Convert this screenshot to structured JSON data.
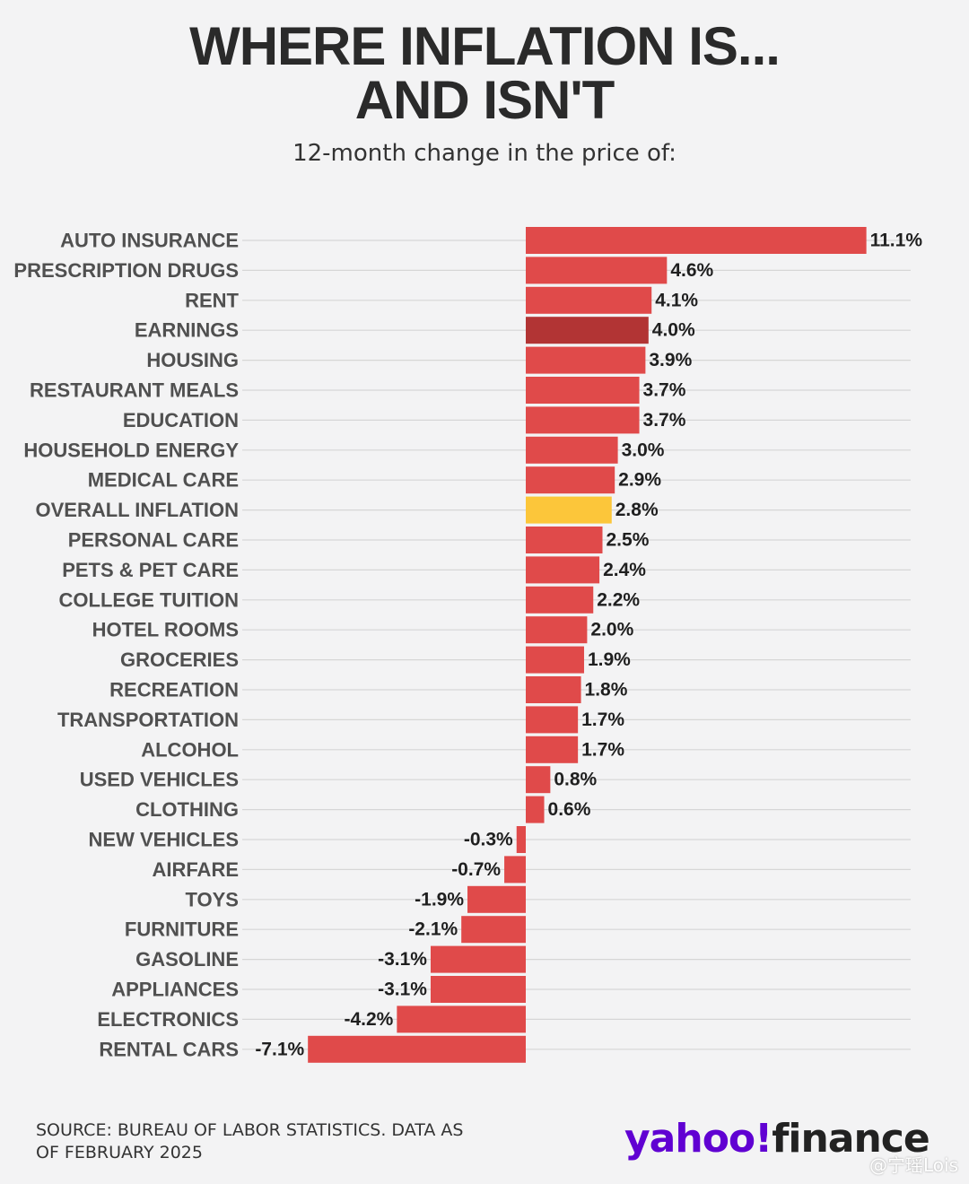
{
  "header": {
    "title_line1": "WHERE INFLATION IS...",
    "title_line2": "AND ISN'T",
    "subtitle": "12-month change in the price of:"
  },
  "footer": {
    "source_line1": "SOURCE: BUREAU OF LABOR STATISTICS. DATA AS",
    "source_line2": "OF FEBRUARY 2025",
    "logo_brand": "yahoo!",
    "logo_product": "finance",
    "watermark": "@宁瑶Lois"
  },
  "colors": {
    "bar_default": "#e04a4a",
    "bar_earnings": "#b23434",
    "bar_overall": "#fcc63a",
    "gridline": "#d6d6d6",
    "background": "#f3f3f4",
    "brand_purple": "#6001d2"
  },
  "chart_data": {
    "type": "bar",
    "orientation": "horizontal",
    "title": "WHERE INFLATION IS... AND ISN'T",
    "subtitle": "12-month change in the price of:",
    "unit": "%",
    "xlim": [
      -7.5,
      11.8
    ],
    "grid": true,
    "categories": [
      "AUTO INSURANCE",
      "PRESCRIPTION DRUGS",
      "RENT",
      "EARNINGS",
      "HOUSING",
      "RESTAURANT MEALS",
      "EDUCATION",
      "HOUSEHOLD ENERGY",
      "MEDICAL CARE",
      "OVERALL INFLATION",
      "PERSONAL CARE",
      "PETS & PET CARE",
      "COLLEGE TUITION",
      "HOTEL ROOMS",
      "GROCERIES",
      "RECREATION",
      "TRANSPORTATION",
      "ALCOHOL",
      "USED VEHICLES",
      "CLOTHING",
      "NEW VEHICLES",
      "AIRFARE",
      "TOYS",
      "FURNITURE",
      "GASOLINE",
      "APPLIANCES",
      "ELECTRONICS",
      "RENTAL CARS"
    ],
    "values": [
      11.1,
      4.6,
      4.1,
      4.0,
      3.9,
      3.7,
      3.7,
      3.0,
      2.9,
      2.8,
      2.5,
      2.4,
      2.2,
      2.0,
      1.9,
      1.8,
      1.7,
      1.7,
      0.8,
      0.6,
      -0.3,
      -0.7,
      -1.9,
      -2.1,
      -3.1,
      -3.1,
      -4.2,
      -7.1
    ],
    "value_labels": [
      "11.1%",
      "4.6%",
      "4.1%",
      "4.0%",
      "3.9%",
      "3.7%",
      "3.7%",
      "3.0%",
      "2.9%",
      "2.8%",
      "2.5%",
      "2.4%",
      "2.2%",
      "2.0%",
      "1.9%",
      "1.8%",
      "1.7%",
      "1.7%",
      "0.8%",
      "0.6%",
      "-0.3%",
      "-0.7%",
      "-1.9%",
      "-2.1%",
      "-3.1%",
      "-3.1%",
      "-4.2%",
      "-7.1%"
    ],
    "highlight": {
      "EARNINGS": "#b23434",
      "OVERALL INFLATION": "#fcc63a"
    }
  }
}
